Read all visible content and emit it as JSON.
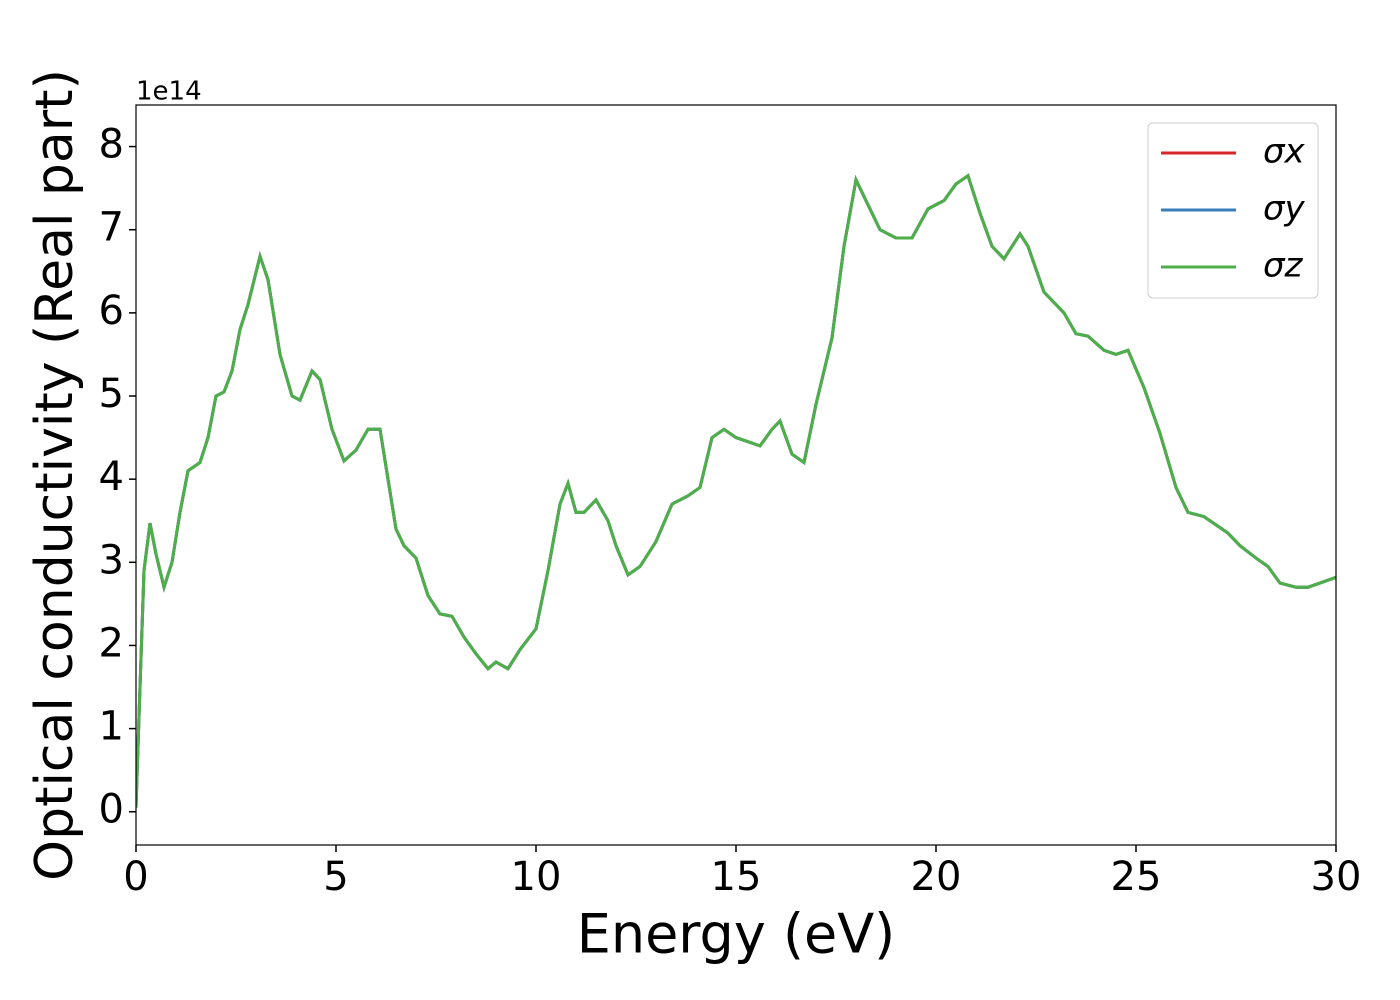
{
  "chart_data": {
    "type": "line",
    "xlabel": "Energy (eV)",
    "ylabel": "Optical conductivity (Real part)",
    "y_offset_label": "1e14",
    "xlim": [
      0,
      30
    ],
    "xticks": [
      0,
      5,
      10,
      15,
      20,
      25,
      30
    ],
    "ylim": [
      -0.4,
      8.5
    ],
    "yticks": [
      0,
      1,
      2,
      3,
      4,
      5,
      6,
      7,
      8
    ],
    "legend": "upper right",
    "x": [
      0,
      0.1,
      0.2,
      0.35,
      0.5,
      0.7,
      0.9,
      1.1,
      1.3,
      1.6,
      1.8,
      2.0,
      2.2,
      2.4,
      2.6,
      2.8,
      3.1,
      3.3,
      3.6,
      3.9,
      4.1,
      4.4,
      4.6,
      4.9,
      5.2,
      5.5,
      5.8,
      6.1,
      6.5,
      6.7,
      7.0,
      7.3,
      7.6,
      7.9,
      8.2,
      8.5,
      8.8,
      9.0,
      9.3,
      9.6,
      10.0,
      10.3,
      10.6,
      10.8,
      11.0,
      11.2,
      11.5,
      11.8,
      12.0,
      12.3,
      12.6,
      13.0,
      13.4,
      13.8,
      14.1,
      14.4,
      14.7,
      15.0,
      15.3,
      15.6,
      15.9,
      16.1,
      16.4,
      16.7,
      17.0,
      17.4,
      17.7,
      18.0,
      18.3,
      18.6,
      19.0,
      19.4,
      19.8,
      20.2,
      20.5,
      20.8,
      21.1,
      21.4,
      21.7,
      22.1,
      22.3,
      22.7,
      23.0,
      23.2,
      23.5,
      23.8,
      24.2,
      24.5,
      24.8,
      25.2,
      25.6,
      26.0,
      26.3,
      26.7,
      27.0,
      27.3,
      27.6,
      28.0,
      28.3,
      28.6,
      29.0,
      29.3,
      29.6,
      30.0
    ],
    "series": [
      {
        "name": "σx",
        "color": "#d62728",
        "values": [
          0.05,
          1.5,
          2.9,
          3.47,
          3.1,
          2.7,
          3.0,
          3.6,
          4.1,
          4.2,
          4.5,
          5.0,
          5.05,
          5.3,
          5.8,
          6.1,
          6.68,
          6.4,
          5.5,
          5.0,
          4.95,
          5.3,
          5.2,
          4.6,
          4.22,
          4.35,
          4.6,
          4.6,
          3.4,
          3.2,
          3.05,
          2.6,
          2.38,
          2.35,
          2.1,
          1.9,
          1.72,
          1.8,
          1.72,
          1.95,
          2.2,
          2.9,
          3.7,
          3.95,
          3.6,
          3.6,
          3.75,
          3.5,
          3.2,
          2.85,
          2.95,
          3.25,
          3.7,
          3.8,
          3.9,
          4.5,
          4.6,
          4.5,
          4.45,
          4.4,
          4.6,
          4.7,
          4.3,
          4.2,
          4.9,
          5.7,
          6.8,
          7.6,
          7.3,
          7.0,
          6.9,
          6.9,
          7.25,
          7.35,
          7.55,
          7.65,
          7.2,
          6.8,
          6.65,
          6.95,
          6.8,
          6.25,
          6.1,
          6.0,
          5.75,
          5.72,
          5.55,
          5.5,
          5.55,
          5.1,
          4.55,
          3.9,
          3.6,
          3.55,
          3.45,
          3.35,
          3.2,
          3.05,
          2.95,
          2.75,
          2.7,
          2.7,
          2.75,
          2.82
        ]
      },
      {
        "name": "σy",
        "color": "#377eb8",
        "values": [
          0.05,
          1.5,
          2.9,
          3.47,
          3.1,
          2.7,
          3.0,
          3.6,
          4.1,
          4.2,
          4.5,
          5.0,
          5.05,
          5.3,
          5.8,
          6.1,
          6.68,
          6.4,
          5.5,
          5.0,
          4.95,
          5.3,
          5.2,
          4.6,
          4.22,
          4.35,
          4.6,
          4.6,
          3.4,
          3.2,
          3.05,
          2.6,
          2.38,
          2.35,
          2.1,
          1.9,
          1.72,
          1.8,
          1.72,
          1.95,
          2.2,
          2.9,
          3.7,
          3.95,
          3.6,
          3.6,
          3.75,
          3.5,
          3.2,
          2.85,
          2.95,
          3.25,
          3.7,
          3.8,
          3.9,
          4.5,
          4.6,
          4.5,
          4.45,
          4.4,
          4.6,
          4.7,
          4.3,
          4.2,
          4.9,
          5.7,
          6.8,
          7.6,
          7.3,
          7.0,
          6.9,
          6.9,
          7.25,
          7.35,
          7.55,
          7.65,
          7.2,
          6.8,
          6.65,
          6.95,
          6.8,
          6.25,
          6.1,
          6.0,
          5.75,
          5.72,
          5.55,
          5.5,
          5.55,
          5.1,
          4.55,
          3.9,
          3.6,
          3.55,
          3.45,
          3.35,
          3.2,
          3.05,
          2.95,
          2.75,
          2.7,
          2.7,
          2.75,
          2.82
        ]
      },
      {
        "name": "σz",
        "color": "#4daf4a",
        "values": [
          0.05,
          1.5,
          2.9,
          3.47,
          3.1,
          2.7,
          3.0,
          3.6,
          4.1,
          4.2,
          4.5,
          5.0,
          5.05,
          5.3,
          5.8,
          6.1,
          6.68,
          6.4,
          5.5,
          5.0,
          4.95,
          5.3,
          5.2,
          4.6,
          4.22,
          4.35,
          4.6,
          4.6,
          3.4,
          3.2,
          3.05,
          2.6,
          2.38,
          2.35,
          2.1,
          1.9,
          1.72,
          1.8,
          1.72,
          1.95,
          2.2,
          2.9,
          3.7,
          3.95,
          3.6,
          3.6,
          3.75,
          3.5,
          3.2,
          2.85,
          2.95,
          3.25,
          3.7,
          3.8,
          3.9,
          4.5,
          4.6,
          4.5,
          4.45,
          4.4,
          4.6,
          4.7,
          4.3,
          4.2,
          4.9,
          5.7,
          6.8,
          7.6,
          7.3,
          7.0,
          6.9,
          6.9,
          7.25,
          7.35,
          7.55,
          7.65,
          7.2,
          6.8,
          6.65,
          6.95,
          6.8,
          6.25,
          6.1,
          6.0,
          5.75,
          5.72,
          5.55,
          5.5,
          5.55,
          5.1,
          4.55,
          3.9,
          3.6,
          3.55,
          3.45,
          3.35,
          3.2,
          3.05,
          2.95,
          2.75,
          2.7,
          2.7,
          2.75,
          2.82
        ]
      }
    ]
  }
}
